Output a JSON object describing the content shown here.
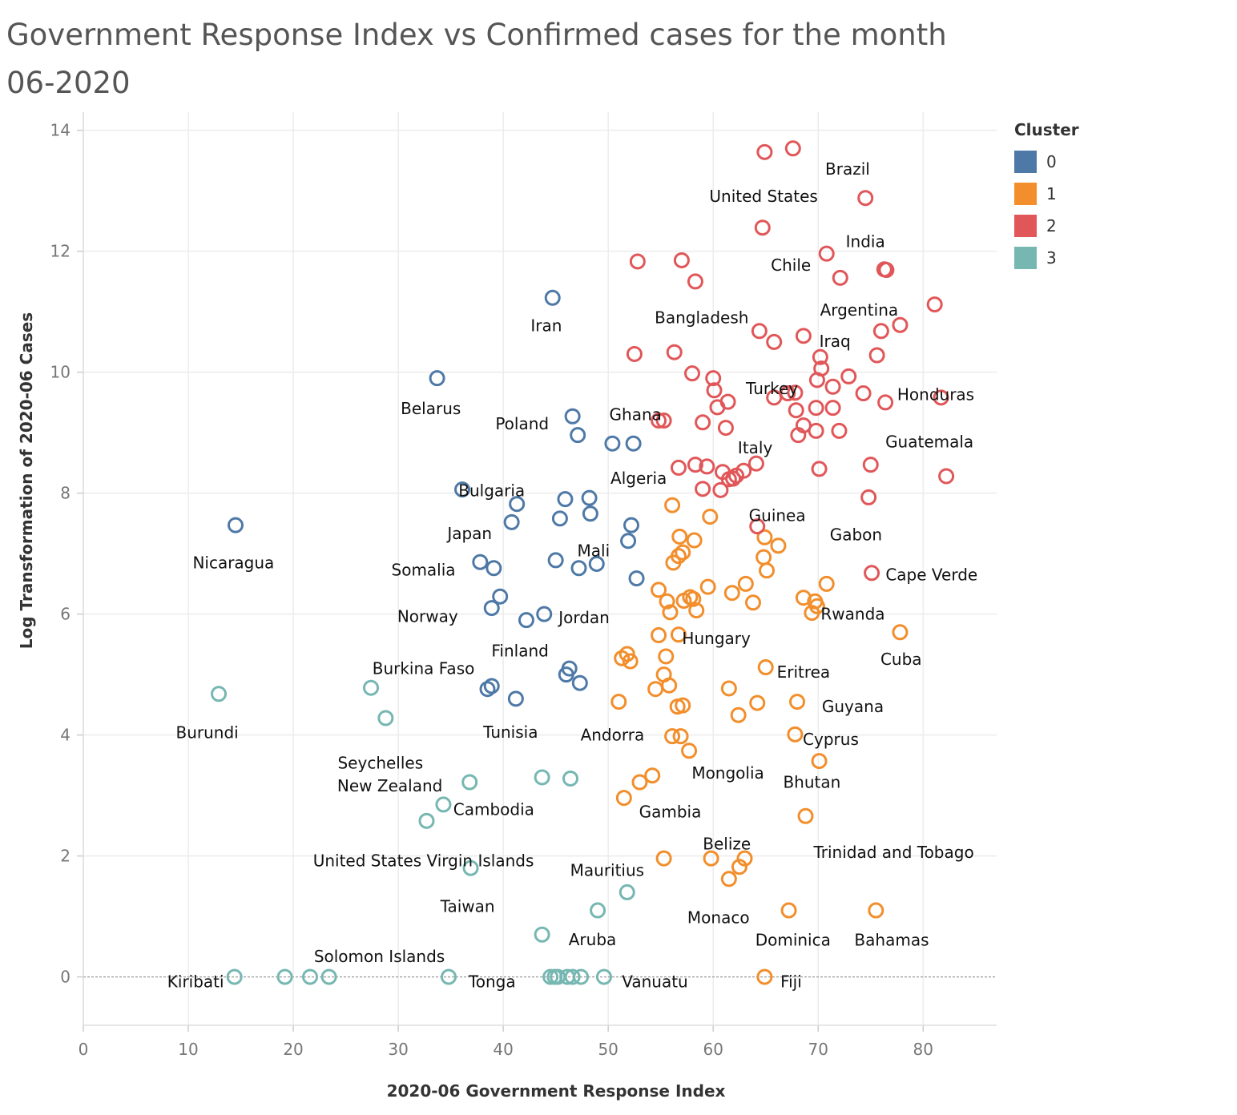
{
  "chart_data": {
    "type": "scatter",
    "title": "Government Response Index vs Confirmed cases for the month 06-2020",
    "xlabel": "2020-06 Government Response Index",
    "ylabel": "Log Transformation of 2020-06 Cases",
    "xlim": [
      0,
      87
    ],
    "ylim": [
      -0.8,
      14.3
    ],
    "xticks": [
      0,
      10,
      20,
      30,
      40,
      50,
      60,
      70,
      80
    ],
    "yticks": [
      0,
      2,
      4,
      6,
      8,
      10,
      12,
      14
    ],
    "grid": true,
    "legend_position": "right",
    "legend": {
      "title": "Cluster",
      "items": [
        {
          "label": "0",
          "color": "#4e79a7"
        },
        {
          "label": "1",
          "color": "#f28e2b"
        },
        {
          "label": "2",
          "color": "#e15759"
        },
        {
          "label": "3",
          "color": "#76b7b2"
        }
      ]
    },
    "labels": [
      {
        "text": "Brazil",
        "x": 72.8,
        "y": 13.36,
        "anchor": "middle"
      },
      {
        "text": "United States",
        "x": 64.8,
        "y": 12.91,
        "anchor": "middle"
      },
      {
        "text": "India",
        "x": 74.5,
        "y": 12.16,
        "anchor": "middle"
      },
      {
        "text": "Chile",
        "x": 67.4,
        "y": 11.77,
        "anchor": "middle"
      },
      {
        "text": "Argentina",
        "x": 73.9,
        "y": 11.03,
        "anchor": "middle"
      },
      {
        "text": "Bangladesh",
        "x": 58.9,
        "y": 10.9,
        "anchor": "middle"
      },
      {
        "text": "Iran",
        "x": 44.1,
        "y": 10.77,
        "anchor": "middle"
      },
      {
        "text": "Iraq",
        "x": 71.6,
        "y": 10.51,
        "anchor": "middle"
      },
      {
        "text": "Turkey",
        "x": 65.6,
        "y": 9.73,
        "anchor": "middle"
      },
      {
        "text": "Honduras",
        "x": 81.2,
        "y": 9.63,
        "anchor": "middle"
      },
      {
        "text": "Belarus",
        "x": 33.1,
        "y": 9.4,
        "anchor": "middle"
      },
      {
        "text": "Ghana",
        "x": 52.6,
        "y": 9.3,
        "anchor": "middle"
      },
      {
        "text": "Poland",
        "x": 41.8,
        "y": 9.15,
        "anchor": "middle"
      },
      {
        "text": "Guatemala",
        "x": 80.6,
        "y": 8.85,
        "anchor": "middle"
      },
      {
        "text": "Italy",
        "x": 64.0,
        "y": 8.75,
        "anchor": "middle"
      },
      {
        "text": "Algeria",
        "x": 52.9,
        "y": 8.25,
        "anchor": "middle"
      },
      {
        "text": "Bulgaria",
        "x": 38.9,
        "y": 8.04,
        "anchor": "middle"
      },
      {
        "text": "Guinea",
        "x": 66.1,
        "y": 7.63,
        "anchor": "middle"
      },
      {
        "text": "Japan",
        "x": 36.8,
        "y": 7.33,
        "anchor": "middle"
      },
      {
        "text": "Gabon",
        "x": 73.6,
        "y": 7.31,
        "anchor": "middle"
      },
      {
        "text": "Nicaragua",
        "x": 14.3,
        "y": 6.85,
        "anchor": "middle"
      },
      {
        "text": "Mali",
        "x": 48.6,
        "y": 7.05,
        "anchor": "middle"
      },
      {
        "text": "Somalia",
        "x": 32.4,
        "y": 6.73,
        "anchor": "middle"
      },
      {
        "text": "Cape Verde",
        "x": 80.8,
        "y": 6.65,
        "anchor": "middle"
      },
      {
        "text": "Norway",
        "x": 32.8,
        "y": 5.96,
        "anchor": "middle"
      },
      {
        "text": "Jordan",
        "x": 47.7,
        "y": 5.94,
        "anchor": "middle"
      },
      {
        "text": "Rwanda",
        "x": 73.3,
        "y": 6.0,
        "anchor": "middle"
      },
      {
        "text": "Hungary",
        "x": 60.3,
        "y": 5.6,
        "anchor": "middle"
      },
      {
        "text": "Cuba",
        "x": 77.9,
        "y": 5.25,
        "anchor": "middle"
      },
      {
        "text": "Finland",
        "x": 41.6,
        "y": 5.39,
        "anchor": "middle"
      },
      {
        "text": "Burkina Faso",
        "x": 32.4,
        "y": 5.1,
        "anchor": "middle"
      },
      {
        "text": "Eritrea",
        "x": 68.6,
        "y": 5.04,
        "anchor": "middle"
      },
      {
        "text": "Burundi",
        "x": 11.8,
        "y": 4.04,
        "anchor": "middle"
      },
      {
        "text": "Guyana",
        "x": 73.3,
        "y": 4.47,
        "anchor": "middle"
      },
      {
        "text": "Tunisia",
        "x": 40.7,
        "y": 4.05,
        "anchor": "middle"
      },
      {
        "text": "Andorra",
        "x": 50.4,
        "y": 4.0,
        "anchor": "middle"
      },
      {
        "text": "Cyprus",
        "x": 71.2,
        "y": 3.93,
        "anchor": "middle"
      },
      {
        "text": "Seychelles",
        "x": 28.3,
        "y": 3.54,
        "anchor": "middle"
      },
      {
        "text": "Mongolia",
        "x": 61.4,
        "y": 3.37,
        "anchor": "middle"
      },
      {
        "text": "New Zealand",
        "x": 29.2,
        "y": 3.16,
        "anchor": "middle"
      },
      {
        "text": "Bhutan",
        "x": 69.4,
        "y": 3.22,
        "anchor": "middle"
      },
      {
        "text": "Cambodia",
        "x": 39.1,
        "y": 2.77,
        "anchor": "middle"
      },
      {
        "text": "Gambia",
        "x": 55.9,
        "y": 2.73,
        "anchor": "middle"
      },
      {
        "text": "Belize",
        "x": 61.3,
        "y": 2.2,
        "anchor": "middle"
      },
      {
        "text": "United States Virgin Islands",
        "x": 32.4,
        "y": 1.92,
        "anchor": "middle"
      },
      {
        "text": "Trinidad and Tobago",
        "x": 77.2,
        "y": 2.06,
        "anchor": "middle"
      },
      {
        "text": "Mauritius",
        "x": 49.9,
        "y": 1.76,
        "anchor": "middle"
      },
      {
        "text": "Taiwan",
        "x": 36.6,
        "y": 1.17,
        "anchor": "middle"
      },
      {
        "text": "Monaco",
        "x": 60.5,
        "y": 0.98,
        "anchor": "middle"
      },
      {
        "text": "Aruba",
        "x": 48.5,
        "y": 0.62,
        "anchor": "middle"
      },
      {
        "text": "Dominica",
        "x": 67.6,
        "y": 0.61,
        "anchor": "middle"
      },
      {
        "text": "Bahamas",
        "x": 77.0,
        "y": 0.61,
        "anchor": "middle"
      },
      {
        "text": "Solomon Islands",
        "x": 28.2,
        "y": 0.34,
        "anchor": "middle"
      },
      {
        "text": "Kiribati",
        "x": 13.4,
        "y": -0.08,
        "anchor": "end"
      },
      {
        "text": "Tonga",
        "x": 36.7,
        "y": -0.08,
        "anchor": "start"
      },
      {
        "text": "Vanuatu",
        "x": 51.3,
        "y": -0.08,
        "anchor": "start"
      },
      {
        "text": "Fiji",
        "x": 66.4,
        "y": -0.08,
        "anchor": "start"
      }
    ],
    "series": [
      {
        "cluster": "0",
        "points": [
          [
            14.5,
            7.47
          ],
          [
            33.7,
            9.9
          ],
          [
            44.7,
            11.23
          ],
          [
            46.6,
            9.27
          ],
          [
            47.1,
            8.96
          ],
          [
            50.4,
            8.82
          ],
          [
            52.4,
            8.82
          ],
          [
            36.1,
            8.06
          ],
          [
            41.3,
            7.82
          ],
          [
            40.8,
            7.52
          ],
          [
            45.9,
            7.9
          ],
          [
            45.4,
            7.58
          ],
          [
            48.2,
            7.92
          ],
          [
            48.3,
            7.66
          ],
          [
            52.2,
            7.47
          ],
          [
            51.9,
            7.21
          ],
          [
            37.8,
            6.86
          ],
          [
            39.1,
            6.76
          ],
          [
            45.0,
            6.89
          ],
          [
            47.2,
            6.76
          ],
          [
            48.9,
            6.83
          ],
          [
            52.7,
            6.59
          ],
          [
            39.7,
            6.29
          ],
          [
            38.9,
            6.1
          ],
          [
            42.2,
            5.9
          ],
          [
            43.9,
            6.0
          ],
          [
            46.3,
            5.1
          ],
          [
            46.0,
            5.0
          ],
          [
            47.3,
            4.86
          ],
          [
            38.5,
            4.76
          ],
          [
            38.9,
            4.81
          ],
          [
            41.2,
            4.6
          ]
        ]
      },
      {
        "cluster": "1",
        "points": [
          [
            56.1,
            7.8
          ],
          [
            59.7,
            7.61
          ],
          [
            56.8,
            7.28
          ],
          [
            58.2,
            7.22
          ],
          [
            56.7,
            6.96
          ],
          [
            57.1,
            7.02
          ],
          [
            56.2,
            6.85
          ],
          [
            64.9,
            7.27
          ],
          [
            66.2,
            7.13
          ],
          [
            64.8,
            6.94
          ],
          [
            65.1,
            6.72
          ],
          [
            54.8,
            6.4
          ],
          [
            55.6,
            6.21
          ],
          [
            55.9,
            6.03
          ],
          [
            57.2,
            6.22
          ],
          [
            57.8,
            6.28
          ],
          [
            58.1,
            6.25
          ],
          [
            59.5,
            6.45
          ],
          [
            58.4,
            6.06
          ],
          [
            61.8,
            6.35
          ],
          [
            63.1,
            6.5
          ],
          [
            63.8,
            6.19
          ],
          [
            68.6,
            6.27
          ],
          [
            69.7,
            6.21
          ],
          [
            69.9,
            6.13
          ],
          [
            69.4,
            6.02
          ],
          [
            70.8,
            6.5
          ],
          [
            77.8,
            5.7
          ],
          [
            54.8,
            5.65
          ],
          [
            56.7,
            5.66
          ],
          [
            51.3,
            5.27
          ],
          [
            51.8,
            5.34
          ],
          [
            52.1,
            5.22
          ],
          [
            55.5,
            5.3
          ],
          [
            55.3,
            5.0
          ],
          [
            55.8,
            4.82
          ],
          [
            54.5,
            4.76
          ],
          [
            65.0,
            5.12
          ],
          [
            61.5,
            4.77
          ],
          [
            51.0,
            4.55
          ],
          [
            56.6,
            4.47
          ],
          [
            57.1,
            4.49
          ],
          [
            64.2,
            4.53
          ],
          [
            62.4,
            4.33
          ],
          [
            68.0,
            4.55
          ],
          [
            56.1,
            3.98
          ],
          [
            56.9,
            3.98
          ],
          [
            57.7,
            3.74
          ],
          [
            67.8,
            4.01
          ],
          [
            70.1,
            3.57
          ],
          [
            54.2,
            3.33
          ],
          [
            53.0,
            3.22
          ],
          [
            51.5,
            2.96
          ],
          [
            68.8,
            2.66
          ],
          [
            55.3,
            1.96
          ],
          [
            59.8,
            1.96
          ],
          [
            63.0,
            1.96
          ],
          [
            62.5,
            1.82
          ],
          [
            61.5,
            1.62
          ],
          [
            67.2,
            1.1
          ],
          [
            75.5,
            1.1
          ],
          [
            64.9,
            0.0
          ]
        ]
      },
      {
        "cluster": "2",
        "points": [
          [
            67.6,
            13.7
          ],
          [
            64.9,
            13.64
          ],
          [
            74.5,
            12.88
          ],
          [
            64.7,
            12.39
          ],
          [
            70.8,
            11.96
          ],
          [
            72.1,
            11.56
          ],
          [
            76.3,
            11.7
          ],
          [
            76.5,
            11.69
          ],
          [
            52.8,
            11.83
          ],
          [
            57.0,
            11.85
          ],
          [
            58.3,
            11.5
          ],
          [
            81.1,
            11.12
          ],
          [
            77.8,
            10.78
          ],
          [
            76.0,
            10.68
          ],
          [
            64.4,
            10.68
          ],
          [
            65.8,
            10.5
          ],
          [
            68.6,
            10.6
          ],
          [
            52.5,
            10.3
          ],
          [
            56.3,
            10.33
          ],
          [
            70.2,
            10.25
          ],
          [
            75.6,
            10.28
          ],
          [
            58.0,
            9.98
          ],
          [
            60.0,
            9.9
          ],
          [
            70.3,
            10.06
          ],
          [
            72.9,
            9.93
          ],
          [
            69.9,
            9.87
          ],
          [
            71.4,
            9.76
          ],
          [
            60.1,
            9.7
          ],
          [
            67.1,
            9.65
          ],
          [
            67.8,
            9.66
          ],
          [
            74.3,
            9.65
          ],
          [
            65.8,
            9.58
          ],
          [
            81.7,
            9.58
          ],
          [
            76.4,
            9.5
          ],
          [
            61.4,
            9.51
          ],
          [
            60.4,
            9.42
          ],
          [
            67.9,
            9.37
          ],
          [
            69.8,
            9.41
          ],
          [
            71.4,
            9.41
          ],
          [
            54.8,
            9.2
          ],
          [
            55.3,
            9.2
          ],
          [
            59.0,
            9.17
          ],
          [
            61.2,
            9.08
          ],
          [
            68.6,
            9.12
          ],
          [
            69.8,
            9.03
          ],
          [
            72.0,
            9.03
          ],
          [
            68.1,
            8.96
          ],
          [
            56.7,
            8.42
          ],
          [
            58.3,
            8.47
          ],
          [
            59.4,
            8.44
          ],
          [
            60.9,
            8.35
          ],
          [
            61.9,
            8.24
          ],
          [
            62.9,
            8.37
          ],
          [
            64.1,
            8.49
          ],
          [
            61.5,
            8.23
          ],
          [
            62.2,
            8.29
          ],
          [
            70.1,
            8.4
          ],
          [
            75.0,
            8.47
          ],
          [
            82.2,
            8.28
          ],
          [
            59.0,
            8.07
          ],
          [
            60.7,
            8.05
          ],
          [
            74.8,
            7.93
          ],
          [
            64.2,
            7.45
          ],
          [
            75.1,
            6.68
          ]
        ]
      },
      {
        "cluster": "3",
        "points": [
          [
            12.9,
            4.68
          ],
          [
            27.4,
            4.78
          ],
          [
            28.8,
            4.28
          ],
          [
            36.8,
            3.22
          ],
          [
            43.7,
            3.3
          ],
          [
            46.4,
            3.28
          ],
          [
            34.3,
            2.85
          ],
          [
            32.7,
            2.58
          ],
          [
            36.9,
            1.8
          ],
          [
            51.8,
            1.4
          ],
          [
            49.0,
            1.1
          ],
          [
            43.7,
            0.7
          ],
          [
            14.4,
            0.0
          ],
          [
            19.2,
            0.0
          ],
          [
            21.6,
            0.0
          ],
          [
            23.4,
            0.0
          ],
          [
            34.8,
            0.0
          ],
          [
            44.5,
            0.0
          ],
          [
            44.9,
            0.0
          ],
          [
            45.2,
            0.0
          ],
          [
            46.1,
            0.0
          ],
          [
            46.6,
            0.0
          ],
          [
            47.4,
            0.0
          ],
          [
            49.6,
            0.0
          ]
        ]
      }
    ]
  }
}
